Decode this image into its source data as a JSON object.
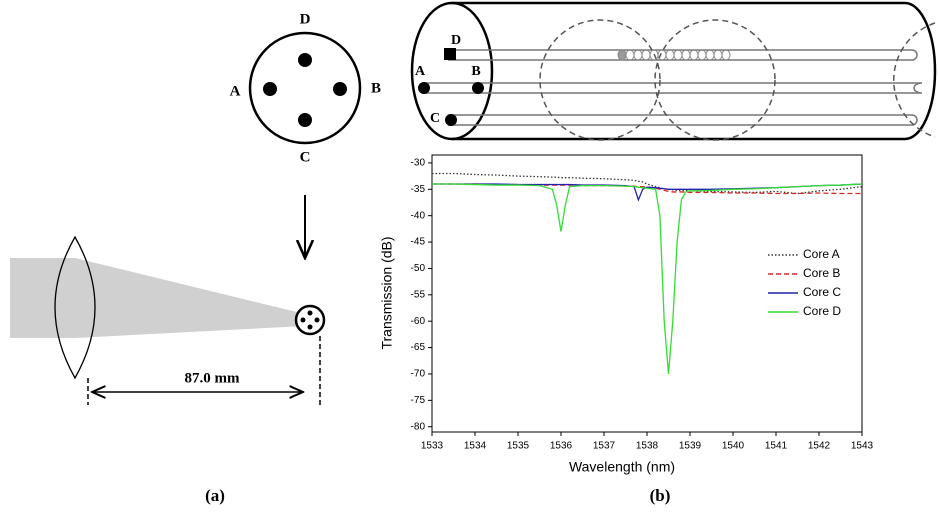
{
  "diagram": {
    "core_labels": {
      "top": "D",
      "left": "A",
      "right": "B",
      "bottom": "C"
    },
    "distance": "87.0 mm",
    "caption_a": "(a)",
    "caption_b": "(b)",
    "fiber_labels": {
      "d": "D",
      "a": "A",
      "b": "B",
      "c": "C"
    }
  },
  "chart_data": {
    "type": "line",
    "x_label": "Wavelength (nm)",
    "y_label": "Transmission (dB)",
    "x": [
      1533,
      1533.5,
      1534,
      1534.5,
      1535,
      1535.5,
      1535.8,
      1535.9,
      1536,
      1536.1,
      1536.2,
      1536.5,
      1537,
      1537.5,
      1537.7,
      1537.8,
      1537.9,
      1538,
      1538.2,
      1538.3,
      1538.4,
      1538.5,
      1538.6,
      1538.7,
      1538.8,
      1538.9,
      1539,
      1539.5,
      1540,
      1540.5,
      1541,
      1541.5,
      1542,
      1542.5,
      1543
    ],
    "series": [
      {
        "name": "Core A",
        "color": "#333333",
        "style": "dotted",
        "values": [
          -32,
          -32,
          -32.2,
          -32.3,
          -32.5,
          -32.6,
          -32.7,
          -32.7,
          -32.8,
          -32.8,
          -32.8,
          -32.9,
          -33,
          -33.2,
          -33.3,
          -33.5,
          -33.6,
          -34,
          -34.5,
          -34.7,
          -34.9,
          -35,
          -35.1,
          -35.2,
          -35.2,
          -35.2,
          -35.3,
          -35.4,
          -35.5,
          -35.6,
          -35.4,
          -35.8,
          -35.3,
          -35,
          -34.5
        ]
      },
      {
        "name": "Core B",
        "color": "#d62728",
        "style": "dashed",
        "values": [
          -34,
          -34,
          -34,
          -34.1,
          -34.1,
          -34.2,
          -34.2,
          -34.2,
          -34.2,
          -34.2,
          -34.2,
          -34.3,
          -34.3,
          -34.4,
          -34.4,
          -34.5,
          -34.5,
          -34.6,
          -34.8,
          -35,
          -35.2,
          -35.4,
          -35.5,
          -35.5,
          -35.5,
          -35.5,
          -35.6,
          -35.6,
          -35.7,
          -35.7,
          -35.8,
          -35.8,
          -35.7,
          -35.8,
          -35.8
        ]
      },
      {
        "name": "Core C",
        "color": "#2222aa",
        "style": "solid",
        "values": [
          -34,
          -34,
          -34,
          -34,
          -34.1,
          -34.1,
          -34.1,
          -34.1,
          -34.1,
          -34.1,
          -34.1,
          -34.2,
          -34.2,
          -34.3,
          -34.5,
          -37,
          -35,
          -34.6,
          -34.7,
          -34.8,
          -34.9,
          -35,
          -35,
          -35,
          -35,
          -35,
          -35,
          -35,
          -34.9,
          -34.8,
          -34.7,
          -34.5,
          -34.3,
          -34.2,
          -34
        ]
      },
      {
        "name": "Core D",
        "color": "#33dd33",
        "style": "solid",
        "values": [
          -34,
          -34,
          -34.1,
          -34.2,
          -34.2,
          -34.3,
          -35,
          -38,
          -43,
          -38,
          -34.5,
          -34.3,
          -34.3,
          -34.4,
          -34.5,
          -34.6,
          -34.7,
          -34.8,
          -35,
          -40,
          -60,
          -70,
          -60,
          -45,
          -37,
          -35.5,
          -35.3,
          -35.2,
          -35,
          -34.9,
          -34.7,
          -34.5,
          -34.3,
          -34.2,
          -34
        ]
      }
    ],
    "xlim": [
      1533,
      1543
    ],
    "ylim": [
      -81,
      -28.5
    ],
    "xticks": [
      1533,
      1534,
      1535,
      1536,
      1537,
      1538,
      1539,
      1540,
      1541,
      1542,
      1543
    ],
    "yticks": [
      -30,
      -35,
      -40,
      -45,
      -50,
      -55,
      -60,
      -65,
      -70,
      -75,
      -80
    ],
    "legend": "right"
  }
}
